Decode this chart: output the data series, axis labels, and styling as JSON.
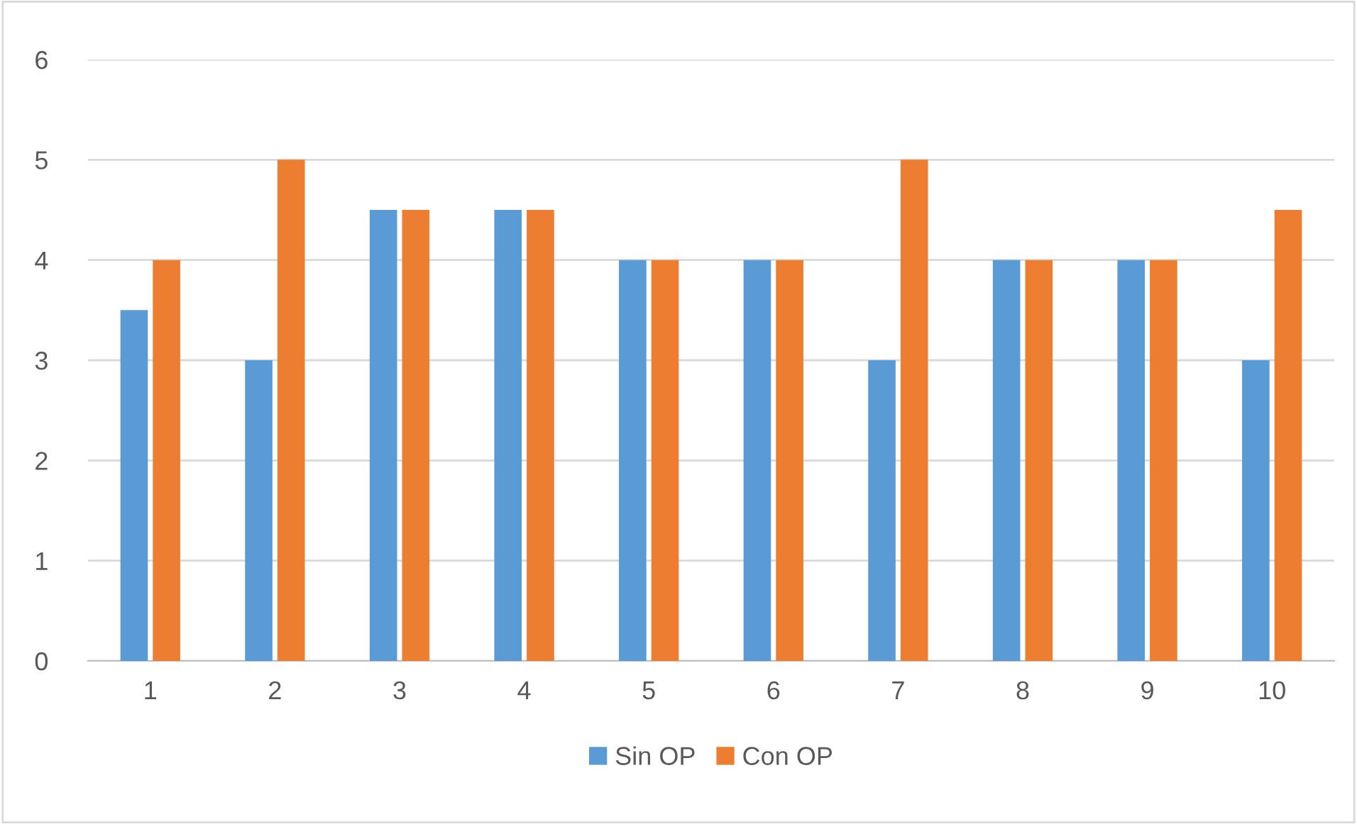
{
  "chart_data": {
    "type": "bar",
    "categories": [
      "1",
      "2",
      "3",
      "4",
      "5",
      "6",
      "7",
      "8",
      "9",
      "10"
    ],
    "series": [
      {
        "name": "Sin OP",
        "color": "#5b9bd5",
        "values": [
          3.5,
          3,
          4.5,
          4.5,
          4,
          4,
          3,
          4,
          4,
          3
        ]
      },
      {
        "name": "Con OP",
        "color": "#ed7d31",
        "values": [
          4,
          5,
          4.5,
          4.5,
          4,
          4,
          5,
          4,
          4,
          4.5
        ]
      }
    ],
    "ylim": [
      0,
      6
    ],
    "yticks": [
      0,
      1,
      2,
      3,
      4,
      5,
      6
    ],
    "grid": "y",
    "legend": "bottom"
  }
}
